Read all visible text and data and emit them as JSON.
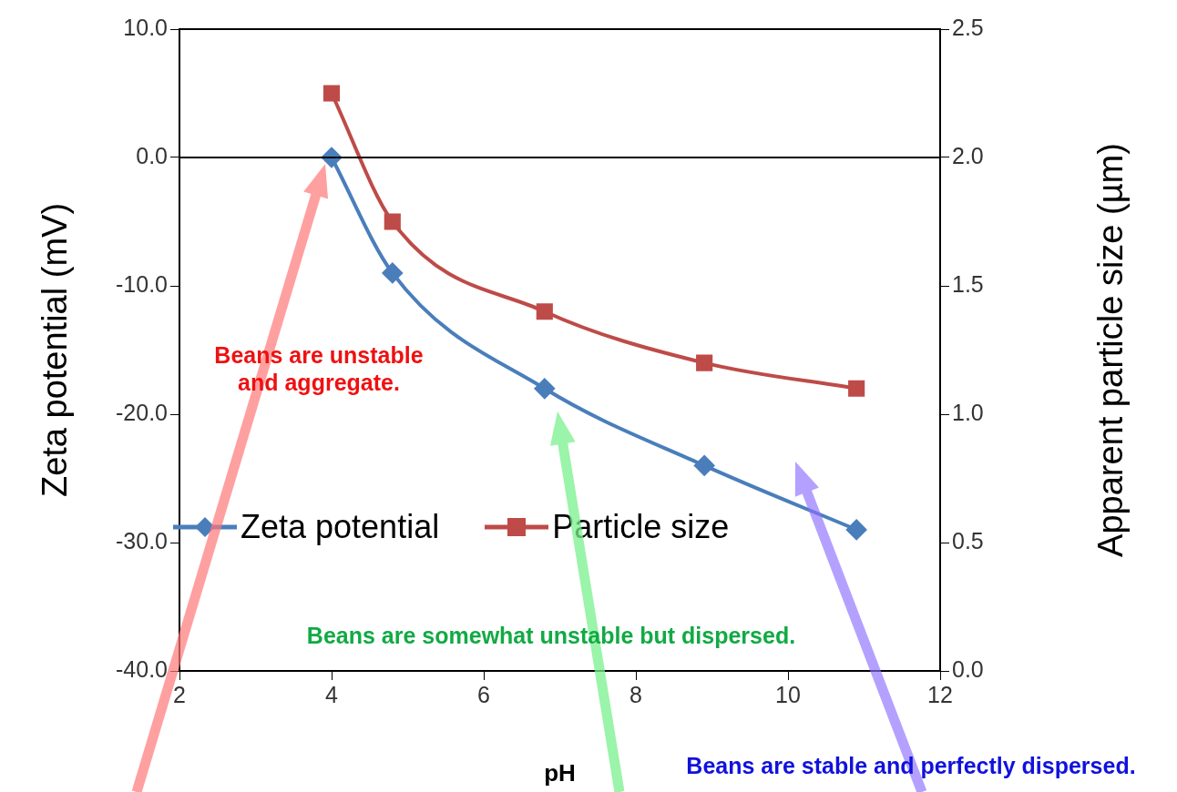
{
  "chart_data": {
    "type": "line",
    "xlabel": "pH",
    "ylabel": "Zeta potential (mV)",
    "y2label": "Apparent particle size (µm)",
    "xlim": [
      2,
      12
    ],
    "xticks": [
      2,
      4,
      6,
      8,
      10,
      12
    ],
    "ylim": [
      -40,
      10
    ],
    "yticks": [
      {
        "value": -40,
        "label": "-40.0"
      },
      {
        "value": -30,
        "label": "-30.0"
      },
      {
        "value": -20,
        "label": "-20.0"
      },
      {
        "value": -10,
        "label": "-10.0"
      },
      {
        "value": 0,
        "label": "0.0"
      },
      {
        "value": 10,
        "label": "10.0"
      }
    ],
    "y2lim": [
      0,
      2.5
    ],
    "y2ticks": [
      {
        "value": 0,
        "label": "0.0"
      },
      {
        "value": 0.5,
        "label": "0.5"
      },
      {
        "value": 1,
        "label": "1.0"
      },
      {
        "value": 1.5,
        "label": "1.5"
      },
      {
        "value": 2,
        "label": "2.0"
      },
      {
        "value": 2.5,
        "label": "2.5"
      }
    ],
    "x": [
      4.0,
      4.8,
      6.8,
      8.9,
      10.9
    ],
    "series": [
      {
        "name": "Zeta potential",
        "color": "#4a7ebb",
        "marker": "diamond",
        "values": [
          0,
          -9,
          -18,
          -24,
          -29
        ]
      },
      {
        "name": "Particle size",
        "color": "#be4b48",
        "marker": "square",
        "axis": "y2",
        "values": [
          2.25,
          1.75,
          1.4,
          1.2,
          1.1
        ]
      }
    ],
    "ref_lines": [
      {
        "axis": "y",
        "value": 0
      }
    ],
    "grid": false,
    "legend": "left",
    "line_style": "solid",
    "annotations": [
      "Beans are unstable and aggregate.",
      "Beans are somewhat unstable but dispersed.",
      "Beans are stable and perfectly dispersed."
    ]
  }
}
